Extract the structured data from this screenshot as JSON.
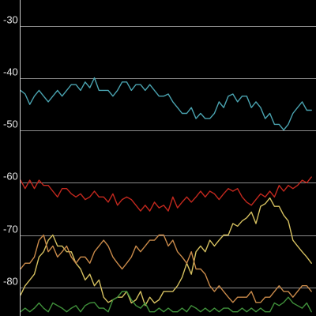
{
  "chart_data": {
    "type": "line",
    "title": "",
    "xlabel": "",
    "ylabel": "",
    "ylim": [
      -85.5,
      -25
    ],
    "xlim": [
      0,
      64
    ],
    "y_ticks": [
      {
        "value": -30,
        "label": "-30"
      },
      {
        "value": -40,
        "label": "-40"
      },
      {
        "value": -50,
        "label": "-50"
      },
      {
        "value": -60,
        "label": "-60"
      },
      {
        "value": -70,
        "label": "-70"
      },
      {
        "value": -80,
        "label": "-80"
      }
    ],
    "grid": true,
    "legend": "none",
    "series": [
      {
        "color": "#4aa3b0",
        "x": [
          0,
          1,
          2,
          3,
          4,
          5,
          6,
          7,
          8,
          9,
          10,
          11,
          12,
          13,
          14,
          15,
          16,
          17,
          18,
          19,
          20,
          21,
          22,
          23,
          24,
          25,
          26,
          27,
          28,
          29,
          30,
          31,
          32,
          33,
          34,
          35,
          36,
          37,
          38,
          39,
          40,
          41,
          42,
          43,
          44,
          45,
          46,
          47,
          48,
          49,
          50,
          51,
          52,
          53,
          54,
          55,
          56,
          57,
          58,
          59,
          60,
          61,
          62,
          63
        ],
        "y": [
          -42.3,
          -43.0,
          -45.0,
          -43.4,
          -42.3,
          -43.4,
          -44.5,
          -43.4,
          -42.3,
          -43.4,
          -42.3,
          -41.2,
          -41.2,
          -42.3,
          -40.7,
          -41.8,
          -39.9,
          -42.3,
          -42.3,
          -42.3,
          -43.4,
          -42.3,
          -40.7,
          -40.7,
          -42.3,
          -41.2,
          -41.2,
          -42.3,
          -41.2,
          -42.3,
          -43.4,
          -43.4,
          -43.0,
          -44.5,
          -45.6,
          -46.7,
          -46.7,
          -45.6,
          -47.7,
          -46.7,
          -47.7,
          -47.7,
          -46.7,
          -44.5,
          -45.6,
          -43.4,
          -43.0,
          -44.5,
          -43.4,
          -43.4,
          -45.6,
          -44.5,
          -45.6,
          -47.7,
          -46.7,
          -48.8,
          -48.8,
          -49.9,
          -48.8,
          -46.7,
          -45.6,
          -44.5,
          -46.1,
          -46.1
        ]
      },
      {
        "color": "#c3281e",
        "x": [
          0,
          1,
          2,
          3,
          4,
          5,
          6,
          7,
          8,
          9,
          10,
          11,
          12,
          13,
          14,
          15,
          16,
          17,
          18,
          19,
          20,
          21,
          22,
          23,
          24,
          25,
          26,
          27,
          28,
          29,
          30,
          31,
          32,
          33,
          34,
          35,
          36,
          37,
          38,
          39,
          40,
          41,
          42,
          43,
          44,
          45,
          46,
          47,
          48,
          49,
          50,
          51,
          52,
          53,
          54,
          55,
          56,
          57,
          58,
          59,
          60,
          61,
          62,
          63
        ],
        "y": [
          -59.5,
          -61.1,
          -59.5,
          -61.1,
          -59.5,
          -60.5,
          -60.5,
          -61.6,
          -62.7,
          -61.1,
          -61.1,
          -62.1,
          -62.7,
          -62.1,
          -63.2,
          -62.7,
          -61.6,
          -62.7,
          -62.7,
          -63.7,
          -62.1,
          -64.3,
          -63.2,
          -62.7,
          -63.2,
          -64.3,
          -65.4,
          -64.3,
          -65.4,
          -63.7,
          -64.8,
          -64.3,
          -65.4,
          -62.7,
          -64.8,
          -63.7,
          -62.7,
          -63.7,
          -62.7,
          -61.6,
          -62.7,
          -61.6,
          -62.1,
          -63.2,
          -62.1,
          -61.1,
          -61.6,
          -61.1,
          -62.7,
          -63.7,
          -64.3,
          -63.2,
          -62.1,
          -62.7,
          -61.6,
          -62.7,
          -60.5,
          -61.6,
          -60.5,
          -61.1,
          -60.5,
          -59.5,
          -60.0,
          -58.9
        ]
      },
      {
        "color": "#d5c060",
        "x": [
          0,
          1,
          2,
          3,
          4,
          5,
          6,
          7,
          8,
          9,
          10,
          11,
          12,
          13,
          14,
          15,
          16,
          17,
          18,
          19,
          20,
          21,
          22,
          23,
          24,
          25,
          26,
          27,
          28,
          29,
          30,
          31,
          32,
          33,
          34,
          35,
          36,
          37,
          38,
          39,
          40,
          41,
          42,
          43,
          44,
          45,
          46,
          47,
          48,
          49,
          50,
          51,
          52,
          53,
          54,
          55,
          56,
          57,
          58,
          59,
          60,
          61,
          62,
          63
        ],
        "y": [
          -81.5,
          -79.7,
          -78.6,
          -77.5,
          -74.2,
          -73.2,
          -71.0,
          -70.0,
          -72.1,
          -72.1,
          -73.2,
          -73.2,
          -75.4,
          -76.5,
          -78.6,
          -77.5,
          -79.7,
          -78.6,
          -81.9,
          -82.9,
          -82.4,
          -81.9,
          -81.9,
          -80.8,
          -83.0,
          -82.4,
          -80.8,
          -83.5,
          -81.9,
          -83.0,
          -82.4,
          -80.8,
          -80.8,
          -80.8,
          -79.7,
          -78.1,
          -75.4,
          -77.5,
          -73.2,
          -72.1,
          -73.2,
          -71.0,
          -72.1,
          -71.0,
          -70.0,
          -70.0,
          -67.8,
          -68.3,
          -67.3,
          -66.7,
          -65.6,
          -67.8,
          -64.5,
          -64.0,
          -62.9,
          -64.5,
          -64.5,
          -66.2,
          -67.3,
          -71.0,
          -72.1,
          -73.2,
          -74.2,
          -75.4
        ]
      },
      {
        "color": "#c98a4a",
        "x": [
          0,
          1,
          2,
          3,
          4,
          5,
          6,
          7,
          8,
          9,
          10,
          11,
          12,
          13,
          14,
          15,
          16,
          17,
          18,
          19,
          20,
          21,
          22,
          23,
          24,
          25,
          26,
          27,
          28,
          29,
          30,
          31,
          32,
          33,
          34,
          35,
          36,
          37,
          38,
          39,
          40,
          41,
          42,
          43,
          44,
          45,
          46,
          47,
          48,
          49,
          50,
          51,
          52,
          53,
          54,
          55,
          56,
          57,
          58,
          59,
          60,
          61,
          62,
          63
        ],
        "y": [
          -76.5,
          -75.4,
          -75.4,
          -74.2,
          -71.0,
          -70.0,
          -73.2,
          -72.1,
          -74.2,
          -73.2,
          -72.1,
          -74.2,
          -75.4,
          -74.2,
          -74.2,
          -75.4,
          -73.2,
          -72.1,
          -71.0,
          -72.1,
          -74.2,
          -75.4,
          -76.5,
          -75.4,
          -74.2,
          -72.1,
          -73.2,
          -72.1,
          -71.0,
          -71.0,
          -70.0,
          -70.0,
          -72.1,
          -71.0,
          -73.2,
          -74.2,
          -75.4,
          -73.2,
          -76.5,
          -76.5,
          -77.5,
          -79.7,
          -80.8,
          -79.7,
          -80.8,
          -81.9,
          -82.9,
          -81.9,
          -81.9,
          -81.9,
          -80.8,
          -82.9,
          -82.9,
          -81.9,
          -81.9,
          -80.8,
          -79.7,
          -80.8,
          -80.8,
          -81.9,
          -80.8,
          -79.7,
          -79.7,
          -80.8
        ]
      },
      {
        "color": "#3f8f3a",
        "x": [
          0,
          1,
          2,
          3,
          4,
          5,
          6,
          7,
          8,
          9,
          10,
          11,
          12,
          13,
          14,
          15,
          16,
          17,
          18,
          19,
          20,
          21,
          22,
          23,
          24,
          25,
          26,
          27,
          28,
          29,
          30,
          31,
          32,
          33,
          34,
          35,
          36,
          37,
          38,
          39,
          40,
          41,
          42,
          43,
          44,
          45,
          46,
          47,
          48,
          49,
          50,
          51,
          52,
          53,
          54,
          55,
          56,
          57,
          58,
          59,
          60,
          61,
          62,
          63
        ],
        "y": [
          -84.7,
          -84.0,
          -84.7,
          -84.0,
          -83.0,
          -84.0,
          -84.7,
          -83.0,
          -83.5,
          -84.0,
          -84.7,
          -84.0,
          -83.5,
          -84.7,
          -83.5,
          -83.0,
          -82.9,
          -84.0,
          -84.0,
          -84.7,
          -82.4,
          -81.9,
          -80.8,
          -80.8,
          -82.4,
          -83.5,
          -84.0,
          -83.0,
          -84.7,
          -84.7,
          -84.0,
          -84.7,
          -84.0,
          -84.7,
          -84.7,
          -84.0,
          -84.7,
          -83.5,
          -84.0,
          -84.7,
          -84.0,
          -84.7,
          -84.0,
          -84.7,
          -84.0,
          -84.0,
          -84.7,
          -84.7,
          -84.0,
          -84.7,
          -84.0,
          -84.7,
          -84.0,
          -84.7,
          -84.7,
          -83.0,
          -83.5,
          -82.9,
          -81.9,
          -83.0,
          -83.5,
          -84.0,
          -83.0,
          -84.7
        ]
      }
    ]
  }
}
